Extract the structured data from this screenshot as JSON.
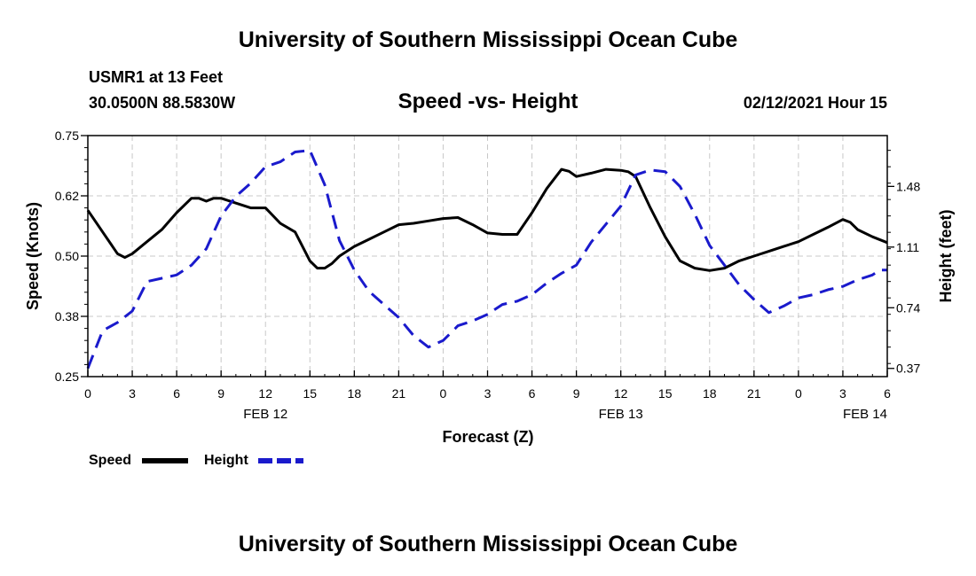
{
  "page": {
    "top_title": "University of Southern Mississippi Ocean Cube",
    "bottom_title": "University of Southern Mississippi Ocean Cube",
    "station_name": "USMR1 at 13 Feet",
    "coordinates": "30.0500N 88.5830W",
    "subtitle": "Speed -vs- Height",
    "date": "02/12/2021 Hour 15"
  },
  "colors": {
    "speed": "#000000",
    "height": "#1a1acc",
    "grid": "#c8c8c8"
  },
  "chart_data": {
    "type": "line",
    "title": "Speed -vs- Height",
    "xlabel": "Forecast (Z)",
    "ylabel": "Speed (Knots)",
    "ylabel_right": "Height (feet)",
    "x_range_hours": [
      0,
      54
    ],
    "x_ticks": [
      {
        "hour": 0,
        "label": "0"
      },
      {
        "hour": 3,
        "label": "3"
      },
      {
        "hour": 6,
        "label": "6"
      },
      {
        "hour": 9,
        "label": "9"
      },
      {
        "hour": 12,
        "label": "12"
      },
      {
        "hour": 15,
        "label": "15"
      },
      {
        "hour": 18,
        "label": "18"
      },
      {
        "hour": 21,
        "label": "21"
      },
      {
        "hour": 24,
        "label": "0"
      },
      {
        "hour": 27,
        "label": "3"
      },
      {
        "hour": 30,
        "label": "6"
      },
      {
        "hour": 33,
        "label": "9"
      },
      {
        "hour": 36,
        "label": "12"
      },
      {
        "hour": 39,
        "label": "15"
      },
      {
        "hour": 42,
        "label": "18"
      },
      {
        "hour": 45,
        "label": "21"
      },
      {
        "hour": 48,
        "label": "0"
      },
      {
        "hour": 51,
        "label": "3"
      },
      {
        "hour": 54,
        "label": "6"
      }
    ],
    "date_labels": [
      {
        "hour": 12,
        "label": "FEB 12"
      },
      {
        "hour": 36,
        "label": "FEB 13"
      },
      {
        "hour": 52.5,
        "label": "FEB 14"
      }
    ],
    "y_left": {
      "range": [
        0.25,
        0.75
      ],
      "ticks": [
        {
          "value": 0.25,
          "label": "0.25"
        },
        {
          "value": 0.375,
          "label": "0.38"
        },
        {
          "value": 0.5,
          "label": "0.50"
        },
        {
          "value": 0.625,
          "label": "0.62"
        },
        {
          "value": 0.75,
          "label": "0.75"
        }
      ]
    },
    "y_right": {
      "range": [
        0.32,
        1.79
      ],
      "ticks": [
        {
          "value": 0.37,
          "label": "0.37"
        },
        {
          "value": 0.74,
          "label": "0.74"
        },
        {
          "value": 1.11,
          "label": "1.11"
        },
        {
          "value": 1.48,
          "label": "1.48"
        }
      ]
    },
    "series": [
      {
        "name": "Speed",
        "axis": "left",
        "style": "solid",
        "x": [
          0,
          1,
          2,
          2.5,
          3,
          4,
          5,
          6,
          7,
          7.5,
          8,
          8.5,
          9,
          10,
          11,
          12,
          13,
          14,
          15,
          15.5,
          16,
          16.5,
          17,
          18,
          19,
          20,
          21,
          22,
          23,
          24,
          25,
          26,
          27,
          28,
          29,
          30,
          31,
          32,
          32.5,
          33,
          34,
          35,
          36,
          36.5,
          37,
          38,
          39,
          40,
          41,
          42,
          43,
          44,
          45,
          46,
          47,
          48,
          49,
          50,
          51,
          51.5,
          52,
          53,
          54
        ],
        "values": [
          0.595,
          0.55,
          0.505,
          0.497,
          0.505,
          0.53,
          0.555,
          0.59,
          0.62,
          0.62,
          0.614,
          0.62,
          0.62,
          0.61,
          0.6,
          0.6,
          0.568,
          0.55,
          0.49,
          0.475,
          0.475,
          0.485,
          0.5,
          0.52,
          0.535,
          0.55,
          0.565,
          0.568,
          0.573,
          0.578,
          0.58,
          0.565,
          0.548,
          0.545,
          0.545,
          0.59,
          0.64,
          0.68,
          0.676,
          0.665,
          0.672,
          0.68,
          0.678,
          0.675,
          0.665,
          0.6,
          0.54,
          0.49,
          0.475,
          0.47,
          0.475,
          0.49,
          0.5,
          0.51,
          0.52,
          0.53,
          0.545,
          0.56,
          0.576,
          0.57,
          0.555,
          0.54,
          0.528
        ]
      },
      {
        "name": "Height",
        "axis": "right",
        "style": "dashed",
        "x": [
          0,
          1,
          2,
          3,
          4,
          5,
          6,
          7,
          8,
          9,
          10,
          11,
          12,
          13,
          14,
          15,
          16,
          17,
          18,
          19,
          20,
          21,
          22,
          23,
          24,
          25,
          26,
          27,
          28,
          29,
          30,
          31,
          32,
          33,
          34,
          35,
          36,
          37,
          38,
          39,
          40,
          41,
          42,
          43,
          44,
          45,
          46,
          47,
          48,
          49,
          50,
          51,
          52,
          53,
          53.5,
          54
        ],
        "values": [
          0.37,
          0.6,
          0.65,
          0.72,
          0.9,
          0.92,
          0.94,
          1.0,
          1.1,
          1.3,
          1.42,
          1.5,
          1.6,
          1.63,
          1.69,
          1.7,
          1.49,
          1.15,
          0.97,
          0.84,
          0.76,
          0.68,
          0.57,
          0.5,
          0.54,
          0.63,
          0.66,
          0.7,
          0.76,
          0.78,
          0.82,
          0.89,
          0.95,
          1.0,
          1.14,
          1.25,
          1.36,
          1.55,
          1.58,
          1.57,
          1.48,
          1.31,
          1.12,
          1.0,
          0.88,
          0.79,
          0.71,
          0.75,
          0.8,
          0.82,
          0.85,
          0.87,
          0.91,
          0.94,
          0.97,
          0.97
        ]
      }
    ],
    "legend": [
      {
        "name": "Speed",
        "style": "solid"
      },
      {
        "name": "Height",
        "style": "dashed"
      }
    ],
    "legend_placement": "bottom-left",
    "grid": true
  }
}
